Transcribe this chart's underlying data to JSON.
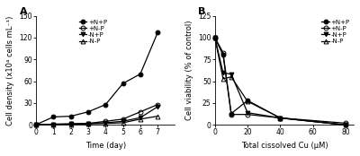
{
  "panel_A": {
    "title": "A",
    "xlabel": "Time (day)",
    "ylabel": "Cell density (x10⁴ cells mL⁻¹)",
    "xlim": [
      0,
      8
    ],
    "ylim": [
      0,
      150
    ],
    "yticks": [
      0,
      30,
      60,
      90,
      120,
      150
    ],
    "xticks": [
      0,
      1,
      2,
      3,
      4,
      5,
      6,
      7
    ],
    "series": [
      {
        "label": "+N+P",
        "x": [
          0,
          1,
          2,
          3,
          4,
          5,
          6,
          7
        ],
        "y": [
          0.5,
          11,
          12,
          18,
          28,
          57,
          70,
          127
        ],
        "marker": "o",
        "fillstyle": "full",
        "color": "black",
        "markersize": 3.5,
        "linewidth": 0.9
      },
      {
        "label": "+N-P",
        "x": [
          0,
          1,
          2,
          3,
          4,
          5,
          6,
          7
        ],
        "y": [
          0.5,
          1,
          1.2,
          2,
          5,
          8,
          18,
          28
        ],
        "marker": "o",
        "fillstyle": "none",
        "color": "black",
        "markersize": 3.5,
        "linewidth": 0.9
      },
      {
        "label": "-N+P",
        "x": [
          0,
          1,
          2,
          3,
          4,
          5,
          6,
          7
        ],
        "y": [
          0.5,
          1,
          1.5,
          2,
          3,
          5,
          10,
          25
        ],
        "marker": "v",
        "fillstyle": "full",
        "color": "black",
        "markersize": 3.5,
        "linewidth": 0.9
      },
      {
        "label": "-N-P",
        "x": [
          0,
          1,
          2,
          3,
          4,
          5,
          6,
          7
        ],
        "y": [
          0.5,
          0.8,
          1,
          1.5,
          2,
          3,
          8,
          12
        ],
        "marker": "^",
        "fillstyle": "none",
        "color": "black",
        "markersize": 3.5,
        "linewidth": 0.9
      }
    ]
  },
  "panel_B": {
    "title": "B",
    "xlabel": "Total cissolved Cu (μM)",
    "ylabel": "Cell viability (% of control)",
    "xlim": [
      0,
      85
    ],
    "ylim": [
      0,
      125
    ],
    "yticks": [
      0,
      25,
      50,
      75,
      100,
      125
    ],
    "xticks": [
      0,
      20,
      40,
      60,
      80
    ],
    "series": [
      {
        "label": "+N+P",
        "x": [
          0,
          5,
          10,
          20,
          40,
          80
        ],
        "y": [
          100,
          80,
          13,
          28,
          8,
          0
        ],
        "marker": "o",
        "fillstyle": "full",
        "color": "black",
        "markersize": 3.5,
        "linewidth": 0.9
      },
      {
        "label": "+N-P",
        "x": [
          0,
          5,
          10,
          20,
          40,
          80
        ],
        "y": [
          100,
          83,
          12,
          12,
          8,
          2
        ],
        "marker": "o",
        "fillstyle": "none",
        "color": "black",
        "markersize": 3.5,
        "linewidth": 0.9
      },
      {
        "label": "-N+P",
        "x": [
          0,
          5,
          10,
          20,
          40,
          80
        ],
        "y": [
          100,
          60,
          58,
          14,
          8,
          0
        ],
        "marker": "v",
        "fillstyle": "full",
        "color": "black",
        "markersize": 3.5,
        "linewidth": 0.9
      },
      {
        "label": "-N-P",
        "x": [
          0,
          5,
          10,
          20,
          40,
          80
        ],
        "y": [
          100,
          53,
          55,
          27,
          8,
          0
        ],
        "marker": "^",
        "fillstyle": "none",
        "color": "black",
        "markersize": 3.5,
        "linewidth": 0.9
      }
    ]
  },
  "background_color": "#ffffff",
  "legend_fontsize": 5.0,
  "axis_label_fontsize": 6.0,
  "tick_fontsize": 5.5,
  "panel_label_fontsize": 8
}
